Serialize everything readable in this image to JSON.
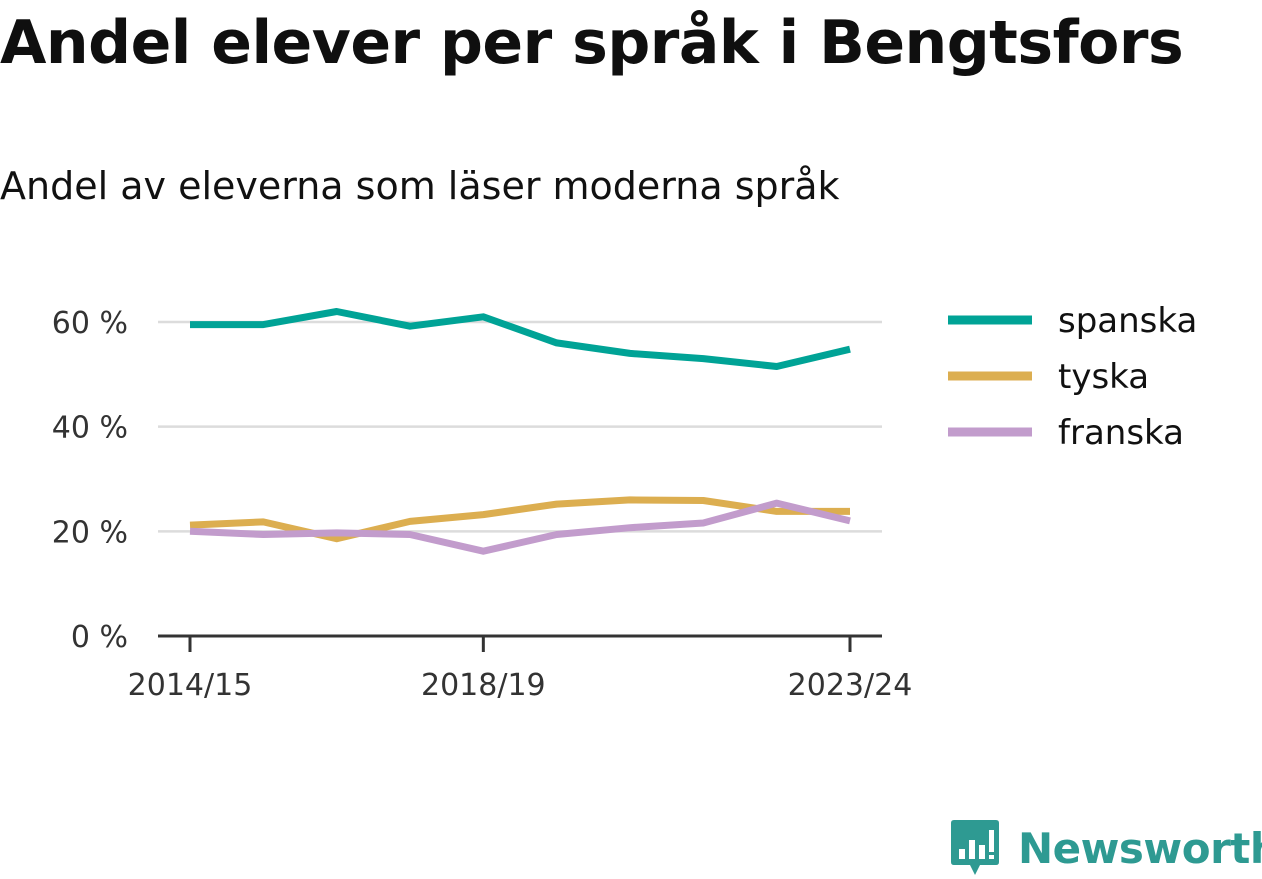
{
  "title": "Andel elever per språk i Bengtsfors",
  "subtitle": "Andel av eleverna som läser moderna språk",
  "brand": {
    "name": "Newsworthy",
    "icon": "newsworthy-chart-bubble-icon",
    "color": "#2e9a92"
  },
  "chart_data": {
    "type": "line",
    "title": "Andel elever per språk i Bengtsfors",
    "subtitle": "Andel av eleverna som läser moderna språk",
    "x": [
      "2014/15",
      "2015/16",
      "2016/17",
      "2017/18",
      "2018/19",
      "2019/20",
      "2020/21",
      "2021/22",
      "2022/23",
      "2023/24"
    ],
    "x_ticks": [
      "2014/15",
      "2018/19",
      "2023/24"
    ],
    "y_ticks": [
      {
        "value": 0,
        "label": "0 %"
      },
      {
        "value": 20,
        "label": "20 %"
      },
      {
        "value": 40,
        "label": "40 %"
      },
      {
        "value": 60,
        "label": "60 %"
      }
    ],
    "ylim": [
      0,
      70
    ],
    "grid": true,
    "legend_position": "right",
    "series": [
      {
        "name": "spanska",
        "color": "#00a396",
        "values": [
          59.5,
          59.5,
          62.0,
          59.2,
          61.0,
          56.0,
          54.0,
          53.0,
          51.5,
          54.8
        ]
      },
      {
        "name": "tyska",
        "color": "#dcae50",
        "values": [
          21.2,
          21.8,
          18.6,
          21.9,
          23.2,
          25.2,
          26.0,
          25.9,
          23.8,
          23.8
        ]
      },
      {
        "name": "franska",
        "color": "#c29ccc",
        "values": [
          20.0,
          19.4,
          19.7,
          19.4,
          16.2,
          19.4,
          20.7,
          21.6,
          25.4,
          22.0
        ]
      }
    ]
  }
}
